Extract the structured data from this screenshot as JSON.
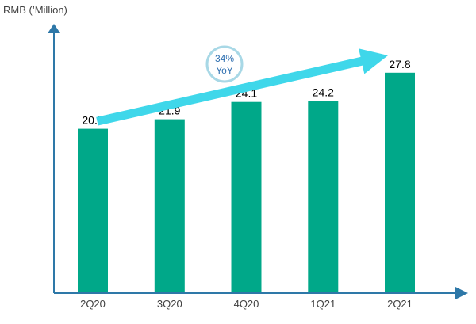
{
  "chart_data": {
    "type": "bar",
    "ylabel": "RMB (’Million)",
    "xlabel": "",
    "categories": [
      "2Q20",
      "3Q20",
      "4Q20",
      "1Q21",
      "2Q21"
    ],
    "values": [
      20.7,
      21.9,
      24.1,
      24.2,
      27.8
    ],
    "value_labels": [
      "20.7",
      "21.9",
      "24.1",
      "24.2",
      "27.8"
    ],
    "ylim": [
      0,
      34
    ],
    "grid": false,
    "legend": "none",
    "annotation": {
      "line1": "34%",
      "line2": "YoY"
    }
  },
  "colors": {
    "bar": "#00a889",
    "axis": "#2e78a8",
    "arrow": "#3fd7ea",
    "badge_border": "#a8d8e6",
    "badge_text": "#2e6fb0"
  }
}
